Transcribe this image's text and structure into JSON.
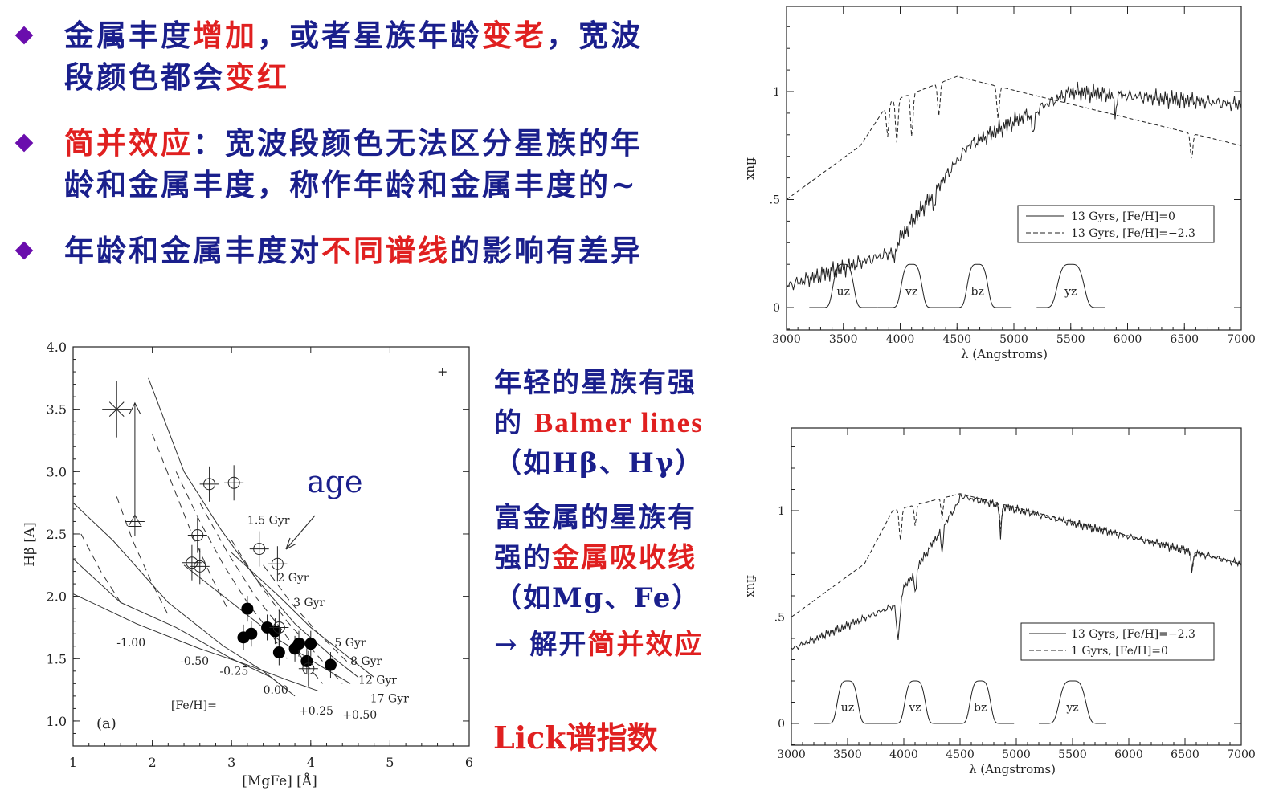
{
  "bullets": [
    {
      "parts": [
        {
          "t": "金属丰度",
          "c": "n"
        },
        {
          "t": "增加",
          "c": "r"
        },
        {
          "t": "，或者星族年龄",
          "c": "n"
        },
        {
          "t": "变老",
          "c": "r"
        },
        {
          "t": "，宽波",
          "c": "n"
        }
      ],
      "parts2": [
        {
          "t": "段颜色都会",
          "c": "n"
        },
        {
          "t": "变红",
          "c": "r"
        }
      ]
    },
    {
      "parts": [
        {
          "t": "简并效应",
          "c": "r"
        },
        {
          "t": "：宽波段颜色无法区分星族的年",
          "c": "n"
        }
      ],
      "parts2": [
        {
          "t": "龄和金属丰度，称作年龄和金属丰度的~",
          "c": "n"
        }
      ]
    },
    {
      "parts": [
        {
          "t": "年龄和金属丰度对",
          "c": "n"
        },
        {
          "t": "不同谱线",
          "c": "r"
        },
        {
          "t": "的影响有差异",
          "c": "n"
        }
      ],
      "parts2": []
    }
  ],
  "side_notes": {
    "young_1": "年轻的星族有强",
    "young_2a": "的 ",
    "young_2b": "Balmer lines",
    "young_3": "（如Hβ、Hγ）",
    "metal_1": "富金属的星族有",
    "metal_2a": "强的",
    "metal_2b": "金属吸收线",
    "metal_3": "（如Mg、Fe）",
    "break_arrow": "→",
    "break_a": " 解开",
    "break_b": "简并效应"
  },
  "lick_label": "Lick谱指数",
  "chart_data": [
    {
      "type": "scatter",
      "panel_label": "(a)",
      "xlabel": "[MgFe] [Å]",
      "ylabel": "Hβ [Å]",
      "xlim": [
        1,
        6
      ],
      "ylim": [
        0.8,
        4.0
      ],
      "xticks": [
        1,
        2,
        3,
        4,
        5,
        6
      ],
      "yticks": [
        "1.0",
        "1.5",
        "2.0",
        "2.5",
        "3.0",
        "3.5",
        "4.0"
      ],
      "annotation": "age",
      "age_lines": [
        "1.5 Gyr",
        "2 Gyr",
        "3 Gyr",
        "5 Gyr",
        "8 Gyr",
        "12 Gyr",
        "17 Gyr"
      ],
      "feh_labels": [
        "-1.00",
        "-0.50",
        "-0.25",
        "0.00",
        "+0.25",
        "+0.50"
      ],
      "feh_title": "[Fe/H]=",
      "filled_points": [
        [
          3.2,
          1.9
        ],
        [
          3.15,
          1.67
        ],
        [
          3.25,
          1.7
        ],
        [
          3.45,
          1.75
        ],
        [
          3.55,
          1.72
        ],
        [
          3.6,
          1.55
        ],
        [
          3.8,
          1.58
        ],
        [
          3.85,
          1.62
        ],
        [
          3.95,
          1.48
        ],
        [
          4.0,
          1.62
        ],
        [
          4.25,
          1.45
        ]
      ],
      "open_points": [
        [
          2.72,
          2.9
        ],
        [
          3.03,
          2.91
        ],
        [
          2.57,
          2.49
        ],
        [
          3.35,
          2.38
        ],
        [
          3.58,
          2.26
        ],
        [
          2.5,
          2.27
        ],
        [
          2.6,
          2.24
        ],
        [
          3.6,
          1.75
        ],
        [
          3.97,
          1.42
        ]
      ],
      "triangle_point": [
        1.78,
        2.6
      ],
      "cross_point": [
        1.55,
        3.5
      ]
    },
    {
      "type": "line",
      "xlabel": "λ (Angstroms)",
      "ylabel": "flux",
      "xlim": [
        3000,
        7000
      ],
      "xticks": [
        3000,
        3500,
        4000,
        4500,
        5000,
        5500,
        6000,
        6500,
        7000
      ],
      "yticks": [
        "0",
        ".5",
        "1"
      ],
      "series": [
        {
          "name": "13 Gyrs, [Fe/H]=0",
          "style": "solid"
        },
        {
          "name": "13 Gyrs, [Fe/H]=−2.3",
          "style": "dashed"
        }
      ],
      "filters": [
        "uz",
        "vz",
        "bz",
        "yz"
      ],
      "filter_centers": [
        3500,
        4100,
        4680,
        5500
      ]
    },
    {
      "type": "line",
      "xlabel": "λ (Angstroms)",
      "ylabel": "flux",
      "xlim": [
        3000,
        7000
      ],
      "xticks": [
        3000,
        3500,
        4000,
        4500,
        5000,
        5500,
        6000,
        6500,
        7000
      ],
      "yticks": [
        "0",
        ".5",
        "1"
      ],
      "series": [
        {
          "name": "13 Gyrs, [Fe/H]=−2.3",
          "style": "solid"
        },
        {
          "name": "1 Gyrs, [Fe/H]=0",
          "style": "dashed"
        }
      ],
      "filters": [
        "uz",
        "vz",
        "bz",
        "yz"
      ],
      "filter_centers": [
        3500,
        4100,
        4680,
        5500
      ]
    }
  ]
}
